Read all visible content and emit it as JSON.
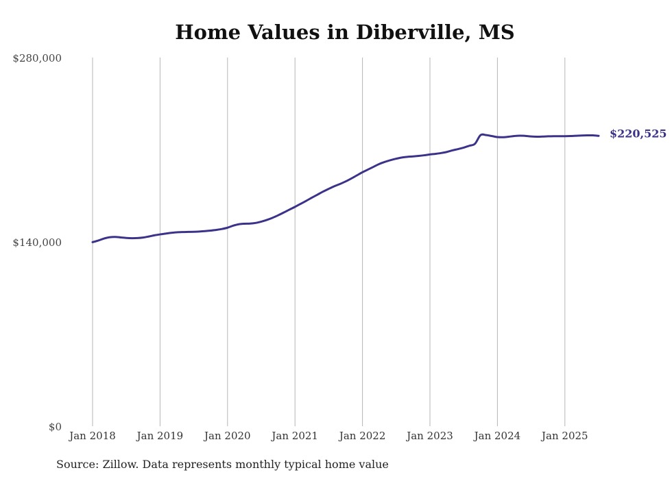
{
  "chart_data": {
    "type": "line",
    "title": "Home Values in Diberville, MS",
    "xlabel": "",
    "ylabel": "",
    "ylim": [
      0,
      280000
    ],
    "yticks": [
      {
        "value": 0,
        "label": "$0"
      },
      {
        "value": 140000,
        "label": "$140,000"
      },
      {
        "value": 280000,
        "label": "$280,000"
      }
    ],
    "xlim": [
      "2018-01",
      "2025-07"
    ],
    "xticks": [
      {
        "date": "2018-01",
        "label": "Jan 2018"
      },
      {
        "date": "2019-01",
        "label": "Jan 2019"
      },
      {
        "date": "2020-01",
        "label": "Jan 2020"
      },
      {
        "date": "2021-01",
        "label": "Jan 2021"
      },
      {
        "date": "2022-01",
        "label": "Jan 2022"
      },
      {
        "date": "2023-01",
        "label": "Jan 2023"
      },
      {
        "date": "2024-01",
        "label": "Jan 2024"
      },
      {
        "date": "2025-01",
        "label": "Jan 2025"
      }
    ],
    "grid": {
      "vertical": true,
      "horizontal": false
    },
    "line_color": "#3b3289",
    "end_label": "$220,525",
    "series": [
      {
        "points": [
          [
            "2018-01",
            139800
          ],
          [
            "2018-02",
            141000
          ],
          [
            "2018-03",
            142500
          ],
          [
            "2018-04",
            143500
          ],
          [
            "2018-05",
            143800
          ],
          [
            "2018-06",
            143400
          ],
          [
            "2018-07",
            143000
          ],
          [
            "2018-08",
            142800
          ],
          [
            "2018-09",
            142900
          ],
          [
            "2018-10",
            143300
          ],
          [
            "2018-11",
            144100
          ],
          [
            "2018-12",
            145000
          ],
          [
            "2019-01",
            145700
          ],
          [
            "2019-02",
            146300
          ],
          [
            "2019-03",
            146900
          ],
          [
            "2019-04",
            147300
          ],
          [
            "2019-05",
            147500
          ],
          [
            "2019-06",
            147600
          ],
          [
            "2019-07",
            147700
          ],
          [
            "2019-08",
            147900
          ],
          [
            "2019-09",
            148200
          ],
          [
            "2019-10",
            148600
          ],
          [
            "2019-11",
            149100
          ],
          [
            "2019-12",
            149800
          ],
          [
            "2020-01",
            150800
          ],
          [
            "2020-02",
            152300
          ],
          [
            "2020-03",
            153400
          ],
          [
            "2020-04",
            153800
          ],
          [
            "2020-05",
            153900
          ],
          [
            "2020-06",
            154400
          ],
          [
            "2020-07",
            155400
          ],
          [
            "2020-08",
            156700
          ],
          [
            "2020-09",
            158300
          ],
          [
            "2020-10",
            160200
          ],
          [
            "2020-11",
            162300
          ],
          [
            "2020-12",
            164500
          ],
          [
            "2021-01",
            166600
          ],
          [
            "2021-02",
            168900
          ],
          [
            "2021-03",
            171200
          ],
          [
            "2021-04",
            173600
          ],
          [
            "2021-05",
            175900
          ],
          [
            "2021-06",
            178200
          ],
          [
            "2021-07",
            180300
          ],
          [
            "2021-08",
            182300
          ],
          [
            "2021-09",
            184000
          ],
          [
            "2021-10",
            185900
          ],
          [
            "2021-11",
            188100
          ],
          [
            "2021-12",
            190500
          ],
          [
            "2022-01",
            192900
          ],
          [
            "2022-02",
            195000
          ],
          [
            "2022-03",
            197100
          ],
          [
            "2022-04",
            199200
          ],
          [
            "2022-05",
            200800
          ],
          [
            "2022-06",
            202100
          ],
          [
            "2022-07",
            203200
          ],
          [
            "2022-08",
            204100
          ],
          [
            "2022-09",
            204600
          ],
          [
            "2022-10",
            204900
          ],
          [
            "2022-11",
            205300
          ],
          [
            "2022-12",
            205800
          ],
          [
            "2023-01",
            206400
          ],
          [
            "2023-02",
            206900
          ],
          [
            "2023-03",
            207500
          ],
          [
            "2023-04",
            208300
          ],
          [
            "2023-05",
            209500
          ],
          [
            "2023-06",
            210500
          ],
          [
            "2023-07",
            211600
          ],
          [
            "2023-08",
            213000
          ],
          [
            "2023-09",
            214500
          ],
          [
            "2023-10",
            221100
          ],
          [
            "2023-11",
            221100
          ],
          [
            "2023-12",
            220400
          ],
          [
            "2024-01",
            219600
          ],
          [
            "2024-02",
            219500
          ],
          [
            "2024-03",
            219900
          ],
          [
            "2024-04",
            220400
          ],
          [
            "2024-05",
            220700
          ],
          [
            "2024-06",
            220500
          ],
          [
            "2024-07",
            220100
          ],
          [
            "2024-08",
            219900
          ],
          [
            "2024-09",
            220000
          ],
          [
            "2024-10",
            220200
          ],
          [
            "2024-11",
            220300
          ],
          [
            "2024-12",
            220300
          ],
          [
            "2025-01",
            220300
          ],
          [
            "2025-02",
            220400
          ],
          [
            "2025-03",
            220600
          ],
          [
            "2025-04",
            220800
          ],
          [
            "2025-05",
            220900
          ],
          [
            "2025-06",
            220900
          ],
          [
            "2025-07",
            220525
          ]
        ]
      }
    ]
  },
  "footer": {
    "source_note": "Source: Zillow. Data represents monthly typical home value"
  }
}
